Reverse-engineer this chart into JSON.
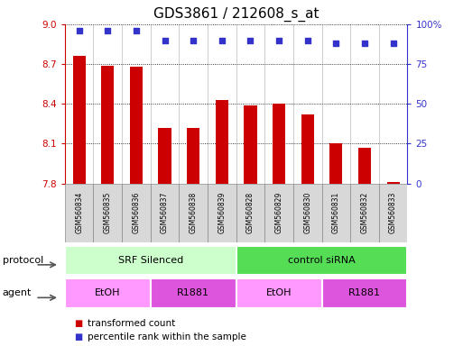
{
  "title": "GDS3861 / 212608_s_at",
  "samples": [
    "GSM560834",
    "GSM560835",
    "GSM560836",
    "GSM560837",
    "GSM560838",
    "GSM560839",
    "GSM560828",
    "GSM560829",
    "GSM560830",
    "GSM560831",
    "GSM560832",
    "GSM560833"
  ],
  "bar_values": [
    8.76,
    8.69,
    8.68,
    8.22,
    8.22,
    8.43,
    8.39,
    8.4,
    8.32,
    8.1,
    8.07,
    7.81
  ],
  "dot_values": [
    96,
    96,
    96,
    90,
    90,
    90,
    90,
    90,
    90,
    88,
    88,
    88
  ],
  "ylim_left": [
    7.8,
    9.0
  ],
  "ylim_right": [
    0,
    100
  ],
  "yticks_left": [
    7.8,
    8.1,
    8.4,
    8.7,
    9.0
  ],
  "yticks_right": [
    0,
    25,
    50,
    75,
    100
  ],
  "ytick_right_labels": [
    "0",
    "25",
    "50",
    "75",
    "100%"
  ],
  "bar_color": "#cc0000",
  "dot_color": "#3333cc",
  "protocol_groups": [
    {
      "label": "SRF Silenced",
      "start": 0,
      "end": 6,
      "color": "#ccffcc"
    },
    {
      "label": "control siRNA",
      "start": 6,
      "end": 12,
      "color": "#55dd55"
    }
  ],
  "agent_groups": [
    {
      "label": "EtOH",
      "start": 0,
      "end": 3,
      "color": "#ff99ff"
    },
    {
      "label": "R1881",
      "start": 3,
      "end": 6,
      "color": "#dd55dd"
    },
    {
      "label": "EtOH",
      "start": 6,
      "end": 9,
      "color": "#ff99ff"
    },
    {
      "label": "R1881",
      "start": 9,
      "end": 12,
      "color": "#dd55dd"
    }
  ],
  "legend_items": [
    {
      "label": "transformed count",
      "color": "#cc0000"
    },
    {
      "label": "percentile rank within the sample",
      "color": "#3333cc"
    }
  ],
  "background_color": "white",
  "tick_fontsize": 7.5,
  "title_fontsize": 11,
  "sample_label_fontsize": 5.5,
  "row_label_fontsize": 8,
  "legend_fontsize": 7.5,
  "bar_width": 0.45
}
